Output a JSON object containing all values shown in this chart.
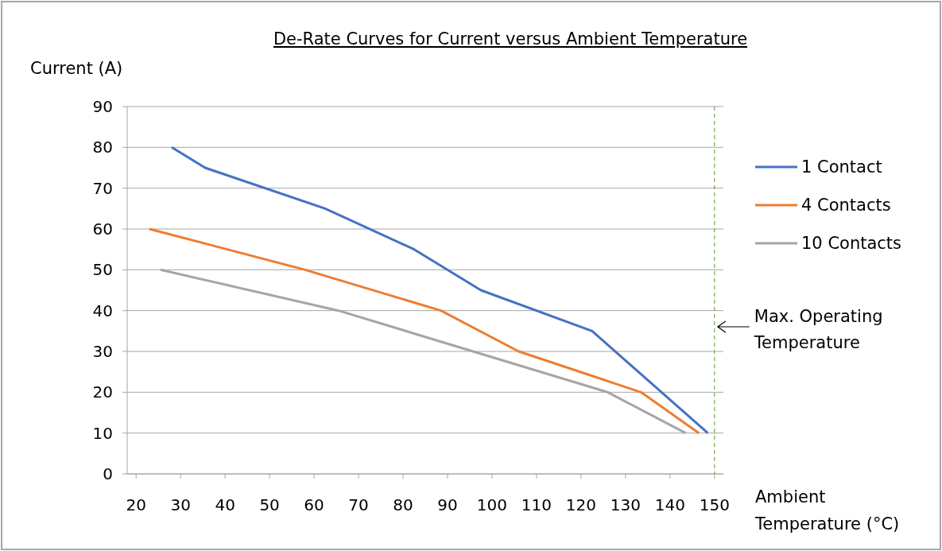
{
  "chart_data": {
    "type": "line",
    "title": "De-Rate Curves for Current versus Ambient Temperature",
    "xlabel": "Ambient Temperature (°C)",
    "ylabel": "Current (A)",
    "xlim": [
      18,
      152
    ],
    "xticks": [
      20,
      30,
      40,
      50,
      60,
      70,
      80,
      90,
      100,
      110,
      120,
      130,
      140,
      150
    ],
    "ylim": [
      0,
      90
    ],
    "yticks": [
      0,
      10,
      20,
      30,
      40,
      50,
      60,
      70,
      80,
      90
    ],
    "grid": "y",
    "legend": "right",
    "marker": "none",
    "line_style": "solid",
    "series": [
      {
        "name": "1 Contact",
        "color": "#4472c4",
        "x": [
          28,
          35.5,
          62.5,
          82.5,
          97.5,
          122.5,
          148.5
        ],
        "values": [
          80,
          75,
          65,
          55,
          45,
          35,
          10
        ]
      },
      {
        "name": "4 Contacts",
        "color": "#ed7d31",
        "x": [
          23,
          58,
          88.5,
          106,
          133.5,
          146.5
        ],
        "values": [
          60,
          50,
          40,
          30,
          20,
          10
        ]
      },
      {
        "name": "10 Contacts",
        "color": "#a5a5a5",
        "x": [
          25.5,
          65.5,
          126,
          143.5
        ],
        "values": [
          50,
          40,
          20,
          10
        ]
      }
    ],
    "ref_lines": [
      {
        "axis": "x",
        "value": 150,
        "label": "Max. Operating Temperature",
        "color": "#70ad47",
        "line_style": "dashed"
      }
    ]
  }
}
